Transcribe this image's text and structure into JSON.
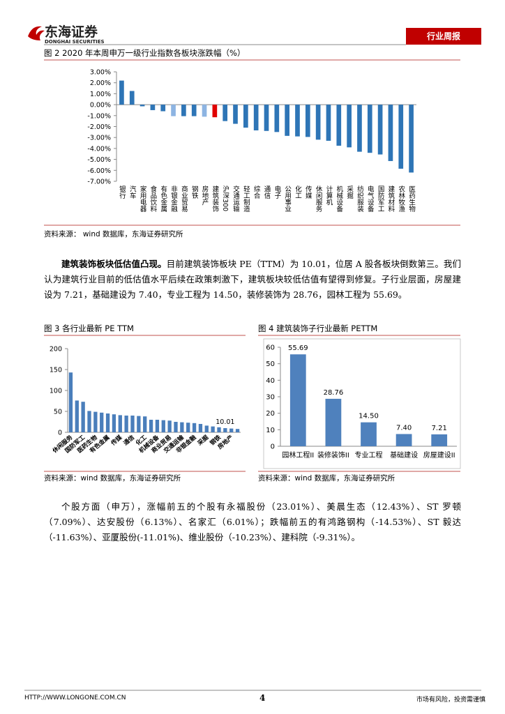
{
  "header": {
    "logo_cn": "东海证券",
    "logo_en": "DONGHAI SECURITIES",
    "tag": "行业周报"
  },
  "chart_data": [
    {
      "type": "bar",
      "title": "图 2  2020 年本周申万一级行业指数各板块涨跌幅（%）",
      "source": "资料来源：  wind 数据库，东海证券研究所",
      "categories": [
        "银行",
        "汽车",
        "家用电器",
        "食品饮料",
        "有色金属",
        "非银金融",
        "商业贸易",
        "钢铁",
        "房地产",
        "建筑装饰",
        "沪深300",
        "交通运输",
        "轻工制造",
        "综合",
        "通信",
        "电子",
        "公用事业",
        "化工",
        "传媒",
        "休闲服务",
        "计算机",
        "机械设备",
        "采掘",
        "纺织服装",
        "电气设备",
        "国防军工",
        "建筑材料",
        "农林牧渔",
        "医药生物"
      ],
      "values": [
        2.2,
        1.25,
        -0.15,
        -0.5,
        -0.6,
        -1.05,
        -1.05,
        -1.05,
        -1.1,
        -1.15,
        -1.5,
        -1.75,
        -2.1,
        -2.35,
        -2.4,
        -2.5,
        -2.85,
        -2.9,
        -2.95,
        -3.2,
        -3.3,
        -3.75,
        -3.9,
        -4.3,
        -4.4,
        -4.55,
        -5.15,
        -5.85,
        -6.2
      ],
      "colors": [
        "#2e75b6",
        "#2e75b6",
        "#2e75b6",
        "#2e75b6",
        "#2e75b6",
        "#8db4e2",
        "#2e75b6",
        "#2e75b6",
        "#8db4e2",
        "#e00000",
        "#2e75b6",
        "#2e75b6",
        "#2e75b6",
        "#2e75b6",
        "#2e75b6",
        "#2e75b6",
        "#2e75b6",
        "#2e75b6",
        "#2e75b6",
        "#2e75b6",
        "#2e75b6",
        "#2e75b6",
        "#2e75b6",
        "#2e75b6",
        "#2e75b6",
        "#2e75b6",
        "#2e75b6",
        "#2e75b6",
        "#2e75b6"
      ],
      "ylim": [
        -7,
        3
      ],
      "yticks": [
        {
          "value": 3,
          "label": "3.00%"
        },
        {
          "value": 2,
          "label": "2.00%"
        },
        {
          "value": 1,
          "label": "1.00%"
        },
        {
          "value": 0,
          "label": "0.00%"
        },
        {
          "value": -1,
          "label": "-1.00%"
        },
        {
          "value": -2,
          "label": "-2.00%"
        },
        {
          "value": -3,
          "label": "-3.00%"
        },
        {
          "value": -4,
          "label": "-4.00%"
        },
        {
          "value": -5,
          "label": "-5.00%"
        },
        {
          "value": -6,
          "label": "-6.00%"
        },
        {
          "value": -7,
          "label": "-7.00%"
        }
      ]
    },
    {
      "type": "bar",
      "title": "图 3  各行业最新 PE TTM",
      "source": "资料来源：wind 数据库，东海证券研究所",
      "categories": [
        "休闲服务",
        null,
        "国防军工",
        null,
        "医药生物",
        null,
        "有色金属",
        null,
        "传媒",
        null,
        "通信",
        null,
        "化工",
        null,
        "机械设备",
        null,
        "商业贸易",
        null,
        "交通运输",
        null,
        "非银金融",
        null,
        "采掘",
        null,
        "钢铁",
        null,
        "房地产",
        null
      ],
      "values": [
        143,
        76,
        73,
        51,
        49,
        47,
        45,
        43,
        41,
        40,
        40,
        39,
        38,
        30,
        30,
        29,
        28,
        25,
        24,
        23,
        22,
        20,
        16,
        14,
        12,
        10.01,
        9,
        8
      ],
      "value_labels": [
        null,
        null,
        null,
        null,
        null,
        null,
        null,
        null,
        null,
        null,
        null,
        null,
        null,
        null,
        null,
        null,
        null,
        null,
        null,
        null,
        null,
        null,
        null,
        null,
        null,
        "10.01",
        null,
        null
      ],
      "color": "#4a7ebb",
      "ylim": [
        0,
        200
      ],
      "yticks": [
        0,
        50,
        100,
        150,
        200
      ]
    },
    {
      "type": "bar",
      "title": "图 4  建筑装饰子行业最新 PETTM",
      "source": "资料来源：wind 数据库，东海证券研究所",
      "categories": [
        "园林工程II",
        "装修装饰II",
        "专业工程",
        "基础建设",
        "房屋建设II"
      ],
      "values": [
        55.69,
        28.76,
        14.5,
        7.4,
        7.21
      ],
      "value_labels": [
        "55.69",
        "28.76",
        "14.50",
        "7.40",
        "7.21"
      ],
      "color": "#4f81bd",
      "ylim": [
        0,
        60
      ],
      "yticks": [
        0,
        10,
        20,
        30,
        40,
        50,
        60
      ]
    }
  ],
  "paragraphs": [
    {
      "lead": "建筑装饰板块低估值凸现。",
      "text": "目前建筑装饰板块 PE（TTM）为 10.01，位居 A 股各板块倒数第三。我们认为建筑行业目前的低估值水平后续在政策刺激下，建筑板块较低估值有望得到修复。子行业层面，房屋建设为 7.21，基础建设为 7.40，专业工程为 14.50，装修装饰为 28.76，园林工程为 55.69。"
    },
    {
      "text": "个股方面（申万），涨幅前五的个股有永福股份（23.01%）、美晨生态（12.43%）、ST 罗顿（7.09%）、达安股份（6.13%）、名家汇（6.01%）；跌幅前五的有鸿路钢构（-14.53%）、ST 毅达（-11.63%）、亚厦股份(-11.01%)、维业股份（-10.23%）、建科院（-9.31%）。"
    }
  ],
  "footer": {
    "url": "HTTP://WWW.LONGONE.COM.CN",
    "page": "4",
    "note": "市场有风险，投资需谨慎"
  }
}
